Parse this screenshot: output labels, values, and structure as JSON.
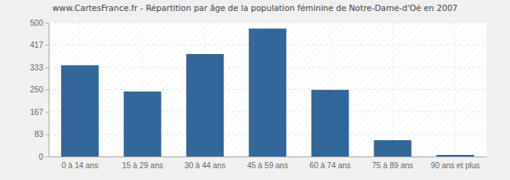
{
  "chart_data": {
    "type": "bar",
    "title": "www.CartesFrance.fr - Répartition par âge de la population féminine de Notre-Dame-d'Oé en 2007",
    "categories": [
      "0 à 14 ans",
      "15 à 29 ans",
      "30 à 44 ans",
      "45 à 59 ans",
      "60 à 74 ans",
      "75 à 89 ans",
      "90 ans et plus"
    ],
    "values": [
      341,
      243,
      383,
      478,
      249,
      61,
      6
    ],
    "color": "#336699",
    "ylim": [
      0,
      500
    ],
    "yticks": [
      0,
      83,
      167,
      250,
      333,
      417,
      500
    ],
    "grid": true
  }
}
